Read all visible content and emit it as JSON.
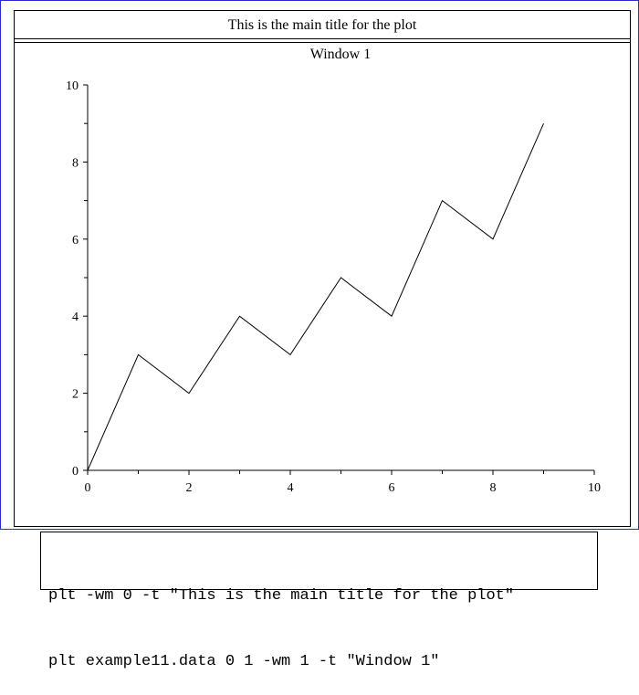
{
  "main_title": "This is the main title for the plot",
  "chart_data": {
    "type": "line",
    "title": "Window 1",
    "xlabel": "",
    "ylabel": "",
    "xlim": [
      0,
      10
    ],
    "ylim": [
      0,
      10
    ],
    "x_major_ticks": [
      0,
      2,
      4,
      6,
      8,
      10
    ],
    "x_minor_ticks": [
      1,
      3,
      5,
      7,
      9
    ],
    "y_major_ticks": [
      0,
      2,
      4,
      6,
      8,
      10
    ],
    "y_minor_ticks": [
      1,
      3,
      5,
      7,
      9
    ],
    "grid": false,
    "series": [
      {
        "x": [
          0,
          1,
          2,
          3,
          4,
          5,
          6,
          7,
          8,
          9
        ],
        "y": [
          0,
          3,
          2,
          4,
          3,
          5,
          4,
          7,
          6,
          9
        ]
      }
    ]
  },
  "code": {
    "lines": [
      "plt -wm 0 -t \"This is the main title for the plot\"",
      "plt example11.data 0 1 -wm 1 -t \"Window 1\""
    ]
  },
  "colors": {
    "frame_border": "#2a2ad0",
    "line": "#000000"
  }
}
